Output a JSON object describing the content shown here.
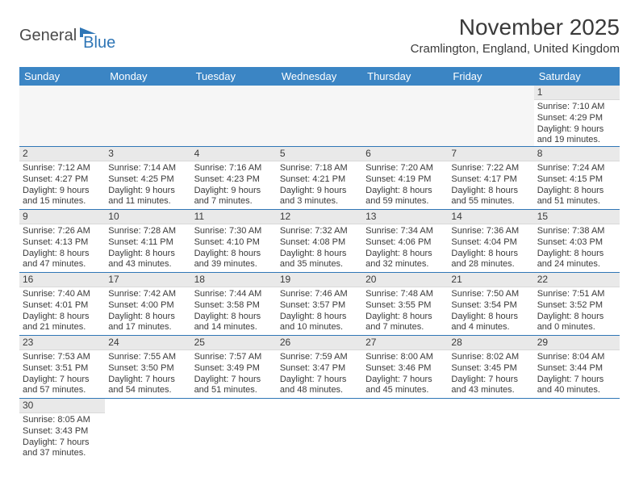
{
  "logo": {
    "text1": "General",
    "text2": "Blue",
    "icon_color": "#2f76b6"
  },
  "title": "November 2025",
  "location": "Cramlington, England, United Kingdom",
  "colors": {
    "header_bg": "#3b85c4",
    "header_text": "#ffffff",
    "daynum_bg": "#e9e9e9",
    "row_border": "#2f76b6",
    "text": "#3a3a3a"
  },
  "day_headers": [
    "Sunday",
    "Monday",
    "Tuesday",
    "Wednesday",
    "Thursday",
    "Friday",
    "Saturday"
  ],
  "weeks": [
    [
      null,
      null,
      null,
      null,
      null,
      null,
      {
        "n": "1",
        "sr": "Sunrise: 7:10 AM",
        "ss": "Sunset: 4:29 PM",
        "d1": "Daylight: 9 hours",
        "d2": "and 19 minutes."
      }
    ],
    [
      {
        "n": "2",
        "sr": "Sunrise: 7:12 AM",
        "ss": "Sunset: 4:27 PM",
        "d1": "Daylight: 9 hours",
        "d2": "and 15 minutes."
      },
      {
        "n": "3",
        "sr": "Sunrise: 7:14 AM",
        "ss": "Sunset: 4:25 PM",
        "d1": "Daylight: 9 hours",
        "d2": "and 11 minutes."
      },
      {
        "n": "4",
        "sr": "Sunrise: 7:16 AM",
        "ss": "Sunset: 4:23 PM",
        "d1": "Daylight: 9 hours",
        "d2": "and 7 minutes."
      },
      {
        "n": "5",
        "sr": "Sunrise: 7:18 AM",
        "ss": "Sunset: 4:21 PM",
        "d1": "Daylight: 9 hours",
        "d2": "and 3 minutes."
      },
      {
        "n": "6",
        "sr": "Sunrise: 7:20 AM",
        "ss": "Sunset: 4:19 PM",
        "d1": "Daylight: 8 hours",
        "d2": "and 59 minutes."
      },
      {
        "n": "7",
        "sr": "Sunrise: 7:22 AM",
        "ss": "Sunset: 4:17 PM",
        "d1": "Daylight: 8 hours",
        "d2": "and 55 minutes."
      },
      {
        "n": "8",
        "sr": "Sunrise: 7:24 AM",
        "ss": "Sunset: 4:15 PM",
        "d1": "Daylight: 8 hours",
        "d2": "and 51 minutes."
      }
    ],
    [
      {
        "n": "9",
        "sr": "Sunrise: 7:26 AM",
        "ss": "Sunset: 4:13 PM",
        "d1": "Daylight: 8 hours",
        "d2": "and 47 minutes."
      },
      {
        "n": "10",
        "sr": "Sunrise: 7:28 AM",
        "ss": "Sunset: 4:11 PM",
        "d1": "Daylight: 8 hours",
        "d2": "and 43 minutes."
      },
      {
        "n": "11",
        "sr": "Sunrise: 7:30 AM",
        "ss": "Sunset: 4:10 PM",
        "d1": "Daylight: 8 hours",
        "d2": "and 39 minutes."
      },
      {
        "n": "12",
        "sr": "Sunrise: 7:32 AM",
        "ss": "Sunset: 4:08 PM",
        "d1": "Daylight: 8 hours",
        "d2": "and 35 minutes."
      },
      {
        "n": "13",
        "sr": "Sunrise: 7:34 AM",
        "ss": "Sunset: 4:06 PM",
        "d1": "Daylight: 8 hours",
        "d2": "and 32 minutes."
      },
      {
        "n": "14",
        "sr": "Sunrise: 7:36 AM",
        "ss": "Sunset: 4:04 PM",
        "d1": "Daylight: 8 hours",
        "d2": "and 28 minutes."
      },
      {
        "n": "15",
        "sr": "Sunrise: 7:38 AM",
        "ss": "Sunset: 4:03 PM",
        "d1": "Daylight: 8 hours",
        "d2": "and 24 minutes."
      }
    ],
    [
      {
        "n": "16",
        "sr": "Sunrise: 7:40 AM",
        "ss": "Sunset: 4:01 PM",
        "d1": "Daylight: 8 hours",
        "d2": "and 21 minutes."
      },
      {
        "n": "17",
        "sr": "Sunrise: 7:42 AM",
        "ss": "Sunset: 4:00 PM",
        "d1": "Daylight: 8 hours",
        "d2": "and 17 minutes."
      },
      {
        "n": "18",
        "sr": "Sunrise: 7:44 AM",
        "ss": "Sunset: 3:58 PM",
        "d1": "Daylight: 8 hours",
        "d2": "and 14 minutes."
      },
      {
        "n": "19",
        "sr": "Sunrise: 7:46 AM",
        "ss": "Sunset: 3:57 PM",
        "d1": "Daylight: 8 hours",
        "d2": "and 10 minutes."
      },
      {
        "n": "20",
        "sr": "Sunrise: 7:48 AM",
        "ss": "Sunset: 3:55 PM",
        "d1": "Daylight: 8 hours",
        "d2": "and 7 minutes."
      },
      {
        "n": "21",
        "sr": "Sunrise: 7:50 AM",
        "ss": "Sunset: 3:54 PM",
        "d1": "Daylight: 8 hours",
        "d2": "and 4 minutes."
      },
      {
        "n": "22",
        "sr": "Sunrise: 7:51 AM",
        "ss": "Sunset: 3:52 PM",
        "d1": "Daylight: 8 hours",
        "d2": "and 0 minutes."
      }
    ],
    [
      {
        "n": "23",
        "sr": "Sunrise: 7:53 AM",
        "ss": "Sunset: 3:51 PM",
        "d1": "Daylight: 7 hours",
        "d2": "and 57 minutes."
      },
      {
        "n": "24",
        "sr": "Sunrise: 7:55 AM",
        "ss": "Sunset: 3:50 PM",
        "d1": "Daylight: 7 hours",
        "d2": "and 54 minutes."
      },
      {
        "n": "25",
        "sr": "Sunrise: 7:57 AM",
        "ss": "Sunset: 3:49 PM",
        "d1": "Daylight: 7 hours",
        "d2": "and 51 minutes."
      },
      {
        "n": "26",
        "sr": "Sunrise: 7:59 AM",
        "ss": "Sunset: 3:47 PM",
        "d1": "Daylight: 7 hours",
        "d2": "and 48 minutes."
      },
      {
        "n": "27",
        "sr": "Sunrise: 8:00 AM",
        "ss": "Sunset: 3:46 PM",
        "d1": "Daylight: 7 hours",
        "d2": "and 45 minutes."
      },
      {
        "n": "28",
        "sr": "Sunrise: 8:02 AM",
        "ss": "Sunset: 3:45 PM",
        "d1": "Daylight: 7 hours",
        "d2": "and 43 minutes."
      },
      {
        "n": "29",
        "sr": "Sunrise: 8:04 AM",
        "ss": "Sunset: 3:44 PM",
        "d1": "Daylight: 7 hours",
        "d2": "and 40 minutes."
      }
    ],
    [
      {
        "n": "30",
        "sr": "Sunrise: 8:05 AM",
        "ss": "Sunset: 3:43 PM",
        "d1": "Daylight: 7 hours",
        "d2": "and 37 minutes."
      },
      null,
      null,
      null,
      null,
      null,
      null
    ]
  ]
}
